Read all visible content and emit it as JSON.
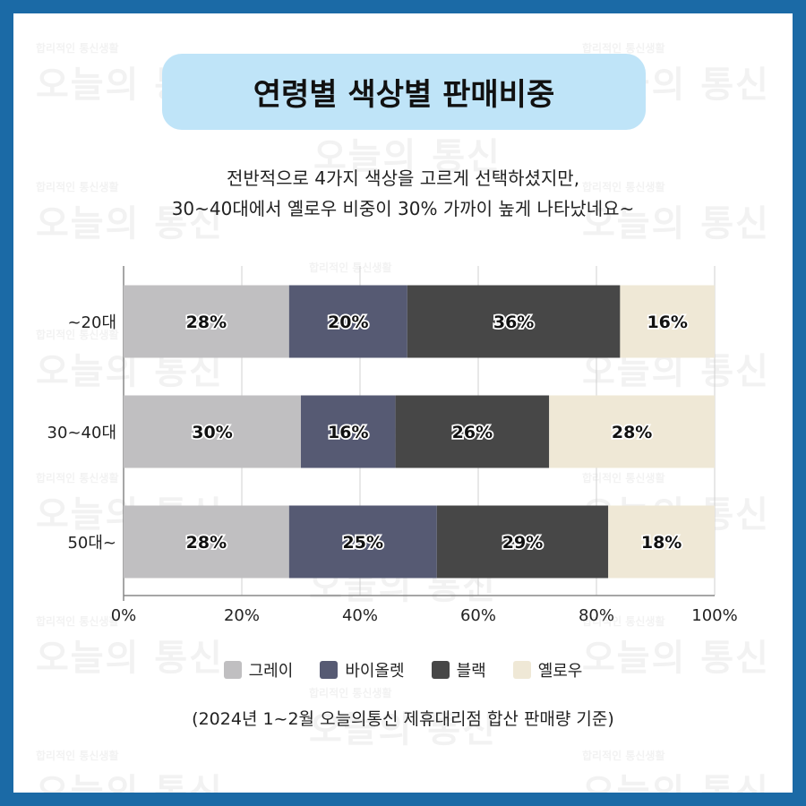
{
  "title": "연령별 색상별 판매비중",
  "subtitle_line1": "전반적으로 4가지 색상을 고르게 선택하셨지만,",
  "subtitle_line2": "30~40대에서 옐로우 비중이 30% 가까이 높게 나타났네요~",
  "footnote": "(2024년 1~2월 오늘의통신 제휴대리점 합산 판매량 기준)",
  "watermark": {
    "small": "합리적인 통신생활",
    "big": "오늘의 통신"
  },
  "chart_data": {
    "type": "bar",
    "orientation": "horizontal",
    "stacked": true,
    "categories": [
      "~20대",
      "30~40대",
      "50대~"
    ],
    "series": [
      {
        "name": "그레이",
        "color": "#c0bfc1",
        "values": [
          28,
          30,
          28
        ]
      },
      {
        "name": "바이올렛",
        "color": "#565a73",
        "values": [
          20,
          16,
          25
        ]
      },
      {
        "name": "블랙",
        "color": "#474747",
        "values": [
          36,
          26,
          29
        ]
      },
      {
        "name": "옐로우",
        "color": "#efe8d6",
        "values": [
          16,
          28,
          18
        ]
      }
    ],
    "xlim": [
      0,
      100
    ],
    "xticks": [
      "0%",
      "20%",
      "40%",
      "60%",
      "80%",
      "100%"
    ],
    "grid": true,
    "legend_position": "bottom"
  }
}
